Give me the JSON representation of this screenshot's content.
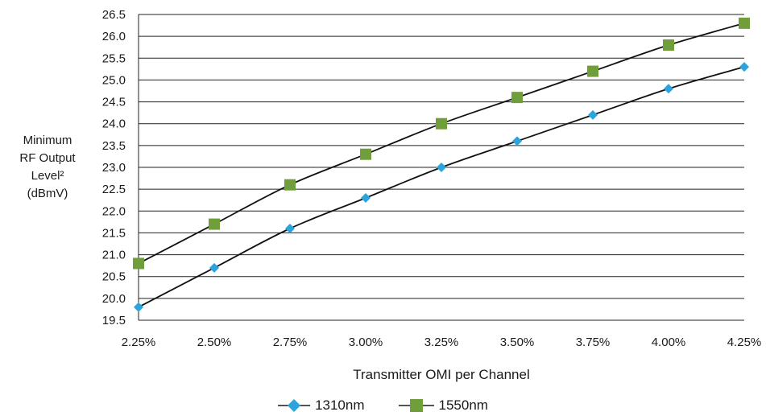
{
  "chart_data": {
    "type": "line",
    "title": "",
    "xlabel": "Transmitter OMI per Channel",
    "ylabel_lines": [
      "Minimum",
      "RF Output",
      "Level²",
      "(dBmV)"
    ],
    "categories": [
      "2.25%",
      "2.50%",
      "2.75%",
      "3.00%",
      "3.25%",
      "3.50%",
      "3.75%",
      "4.00%",
      "4.25%"
    ],
    "x": [
      2.25,
      2.5,
      2.75,
      3.0,
      3.25,
      3.5,
      3.75,
      4.0,
      4.25
    ],
    "xlim": [
      2.25,
      4.25
    ],
    "ylim": [
      19.5,
      26.5
    ],
    "ytick_step": 0.5,
    "grid": true,
    "legend_position": "bottom",
    "series": [
      {
        "name": "1310nm",
        "marker": "diamond",
        "color": "#2ba3dc",
        "values": [
          19.8,
          20.7,
          21.6,
          22.3,
          23.0,
          23.6,
          24.2,
          24.8,
          25.3
        ]
      },
      {
        "name": "1550nm",
        "marker": "square",
        "color": "#6f9e3a",
        "values": [
          20.8,
          21.7,
          22.6,
          23.3,
          24.0,
          24.6,
          25.2,
          25.8,
          26.3
        ]
      }
    ]
  }
}
